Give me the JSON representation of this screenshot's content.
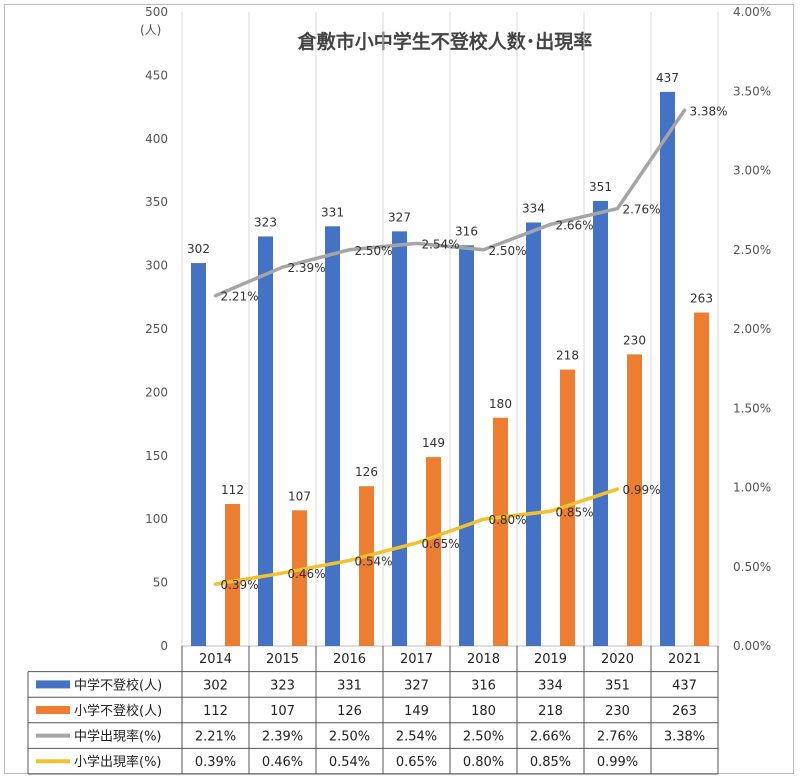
{
  "chart_data": {
    "type": "bar+line",
    "title": "倉敷市小中学生不登校人数･出現率",
    "left_axis": {
      "unit": "(人)",
      "min": 0,
      "max": 500,
      "step": 50,
      "ticks": [
        "0",
        "50",
        "100",
        "150",
        "200",
        "250",
        "300",
        "350",
        "400",
        "450",
        "500"
      ]
    },
    "right_axis": {
      "min": 0,
      "max": 4,
      "step": 0.5,
      "ticks": [
        "0.00%",
        "0.50%",
        "1.00%",
        "1.50%",
        "2.00%",
        "2.50%",
        "3.00%",
        "3.50%",
        "4.00%"
      ]
    },
    "categories": [
      "2014",
      "2015",
      "2016",
      "2017",
      "2018",
      "2019",
      "2020",
      "2021"
    ],
    "series": [
      {
        "name": "中学不登校(人)",
        "type": "bar",
        "axis": "left",
        "color": "#4472C4",
        "values": [
          302,
          323,
          331,
          327,
          316,
          334,
          351,
          437
        ],
        "labels": [
          "302",
          "323",
          "331",
          "327",
          "316",
          "334",
          "351",
          "437"
        ]
      },
      {
        "name": "小学不登校(人)",
        "type": "bar",
        "axis": "left",
        "color": "#ED7D31",
        "values": [
          112,
          107,
          126,
          149,
          180,
          218,
          230,
          263
        ],
        "labels": [
          "112",
          "107",
          "126",
          "149",
          "180",
          "218",
          "230",
          "263"
        ]
      },
      {
        "name": "中学出現率(%)",
        "type": "line",
        "axis": "right",
        "color": "#A5A5A5",
        "values": [
          2.21,
          2.39,
          2.5,
          2.54,
          2.5,
          2.66,
          2.76,
          3.38
        ],
        "labels": [
          "2.21%",
          "2.39%",
          "2.50%",
          "2.54%",
          "2.50%",
          "2.66%",
          "2.76%",
          "3.38%"
        ]
      },
      {
        "name": "小学出現率(%)",
        "type": "line",
        "axis": "right",
        "color": "#F2C12E",
        "values": [
          0.39,
          0.46,
          0.54,
          0.65,
          0.8,
          0.85,
          0.99,
          null
        ],
        "labels": [
          "0.39%",
          "0.46%",
          "0.54%",
          "0.65%",
          "0.80%",
          "0.85%",
          "0.99%",
          ""
        ]
      }
    ],
    "grid": "vertical",
    "legend": "data-table-below"
  }
}
